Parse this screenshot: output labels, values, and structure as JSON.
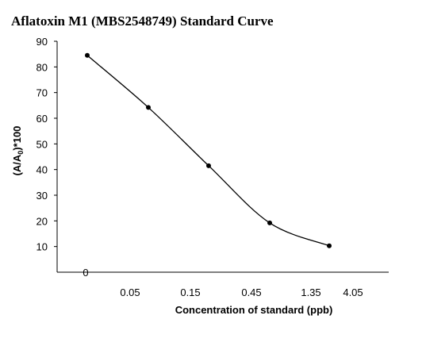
{
  "chart_data": {
    "type": "line",
    "title": "Aflatoxin M1 (MBS2548749) Standard Curve",
    "xlabel": "Concentration of standard (ppb)",
    "ylabel_main": "(A/A",
    "ylabel_sub": "0",
    "ylabel_tail": ")*100",
    "x_origin_label": "0",
    "categories": [
      "0.05",
      "0.15",
      "0.45",
      "1.35",
      "4.05"
    ],
    "points": [
      {
        "x": "0",
        "y": 84.5
      },
      {
        "x": "0.05",
        "y": 64.2
      },
      {
        "x": "0.15",
        "y": 41.5
      },
      {
        "x": "0.45",
        "y": 19.2
      },
      {
        "x": "1.35",
        "y": 10.3
      }
    ],
    "yticks": [
      10,
      20,
      30,
      40,
      50,
      60,
      70,
      80,
      90
    ],
    "ylim": [
      0,
      90
    ],
    "grid": false,
    "legend": "none"
  }
}
